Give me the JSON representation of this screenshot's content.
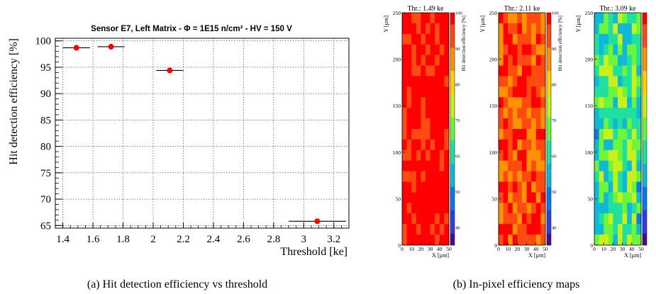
{
  "colors": {
    "marker": "#ff0000",
    "grid": "#000000",
    "colormap": [
      "#4b0d8f",
      "#3040e0",
      "#0a78f0",
      "#10b8d8",
      "#20e0a0",
      "#6cf53a",
      "#c8f01a",
      "#ffd200",
      "#ff9200",
      "#ff4a10",
      "#ff0000"
    ]
  },
  "captions": {
    "a": "(a)  Hit detection efficiency vs threshold",
    "b": "(b)  In-pixel efficiency maps"
  },
  "chart_data": [
    {
      "type": "scatter",
      "title": "Sensor E7, Left Matrix - Φ = 1E15 n/cm² - HV = 150 V",
      "xlabel": "Threshold [ke]",
      "ylabel": "Hit detection efficiency [%]",
      "xlim": [
        1.35,
        3.3
      ],
      "ylim": [
        64.5,
        100.5
      ],
      "x_ticks": [
        "1.4",
        "1.6",
        "1.8",
        "2",
        "2.2",
        "2.4",
        "2.6",
        "2.8",
        "3",
        "3.2"
      ],
      "y_ticks": [
        "65",
        "70",
        "75",
        "80",
        "85",
        "90",
        "95",
        "100"
      ],
      "grid": true,
      "points": [
        {
          "x": 1.49,
          "y": 98.7,
          "xerr": 0.09
        },
        {
          "x": 1.72,
          "y": 98.9,
          "xerr": 0.09
        },
        {
          "x": 2.11,
          "y": 94.4,
          "xerr": 0.09
        },
        {
          "x": 3.09,
          "y": 65.8,
          "xerr": 0.19
        }
      ]
    },
    {
      "type": "heatmap",
      "xlabel": "X [µm]",
      "ylabel": "Y [µm]",
      "zlabel": "Hit detection efficiency [%]",
      "x_ticks": [
        "0",
        "10",
        "20",
        "30",
        "40",
        "50"
      ],
      "y_ticks": [
        "0",
        "50",
        "100",
        "150",
        "200",
        "250"
      ],
      "z_ticks": [
        "40",
        "50",
        "60",
        "70",
        "80",
        "90",
        "100"
      ],
      "xlim": [
        0,
        50
      ],
      "ylim": [
        0,
        250
      ],
      "zlim": [
        35,
        100
      ],
      "panels": [
        {
          "title": "Thr.: 1.49 ke",
          "mean_efficiency": 98.7
        },
        {
          "title": "Thr.: 2.11 ke",
          "mean_efficiency": 94.4
        },
        {
          "title": "Thr.: 3.09 ke",
          "mean_efficiency": 65.8
        }
      ]
    }
  ]
}
